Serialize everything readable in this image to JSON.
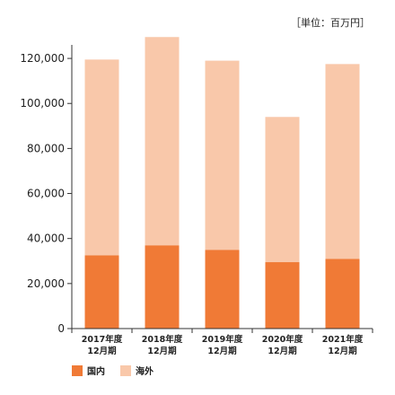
{
  "chart_data": {
    "type": "bar",
    "stacked": true,
    "unit_label": "［単位：百万円］",
    "categories": [
      [
        "2017年度",
        "12月期"
      ],
      [
        "2018年度",
        "12月期"
      ],
      [
        "2019年度",
        "12月期"
      ],
      [
        "2020年度",
        "12月期"
      ],
      [
        "2021年度",
        "12月期"
      ]
    ],
    "series": [
      {
        "name": "国内",
        "color": "#f07a36",
        "values": [
          32500,
          37000,
          35000,
          29500,
          31000
        ]
      },
      {
        "name": "海外",
        "color": "#f9c8aa",
        "values": [
          87000,
          92500,
          84000,
          64500,
          86500
        ]
      }
    ],
    "ylim": [
      0,
      130000
    ],
    "yticks": [
      0,
      20000,
      40000,
      60000,
      80000,
      100000,
      120000
    ],
    "ytick_labels": [
      "0",
      "20,000",
      "40,000",
      "60,000",
      "80,000",
      "100,000",
      "120,000"
    ],
    "grid": false,
    "legend_position": "bottom-left"
  }
}
